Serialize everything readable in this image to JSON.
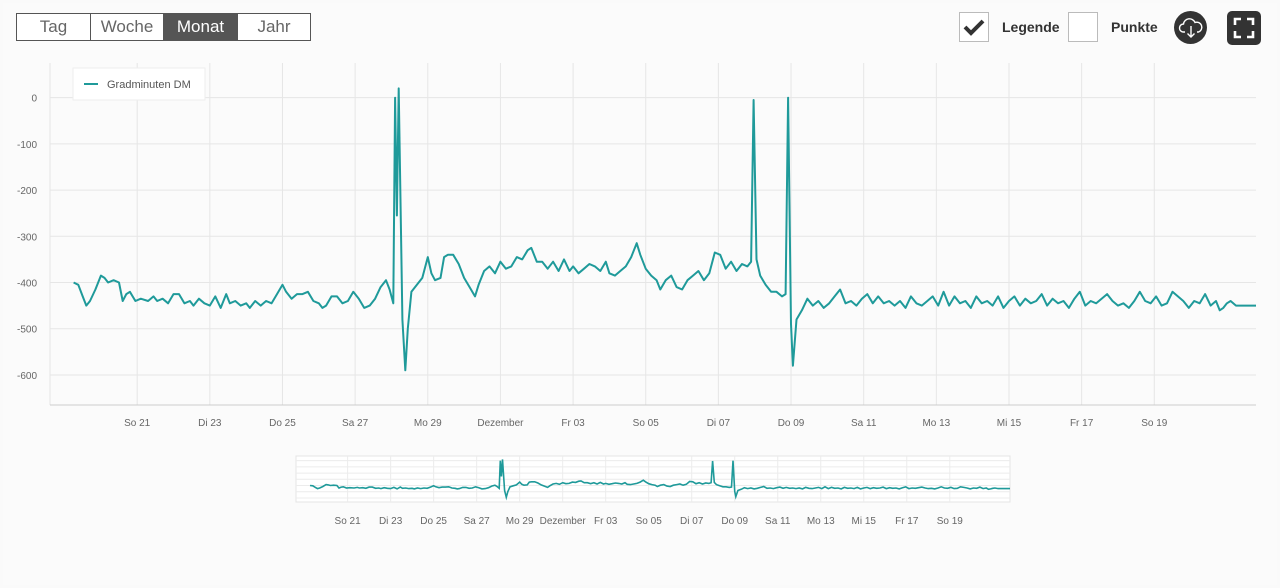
{
  "toolbar": {
    "ranges": [
      "Tag",
      "Woche",
      "Monat",
      "Jahr"
    ],
    "active_range": "Monat",
    "legend_label": "Legende",
    "legend_checked": true,
    "points_label": "Punkte",
    "points_checked": false,
    "download_icon": "cloud-download-icon",
    "fullscreen_icon": "fullscreen-icon"
  },
  "colors": {
    "series": "#1f9a9a",
    "grid": "#e6e6e6",
    "axis_text": "#666666",
    "active_bg": "#555555"
  },
  "chart_data": {
    "type": "line",
    "series": [
      {
        "name": "Gradminuten DM",
        "points": [
          [
            19.25,
            -400
          ],
          [
            19.38,
            -405
          ],
          [
            19.5,
            -430
          ],
          [
            19.6,
            -450
          ],
          [
            19.7,
            -440
          ],
          [
            19.85,
            -415
          ],
          [
            20.0,
            -385
          ],
          [
            20.1,
            -390
          ],
          [
            20.2,
            -400
          ],
          [
            20.35,
            -395
          ],
          [
            20.5,
            -400
          ],
          [
            20.6,
            -440
          ],
          [
            20.7,
            -425
          ],
          [
            20.8,
            -420
          ],
          [
            20.95,
            -440
          ],
          [
            21.1,
            -435
          ],
          [
            21.3,
            -440
          ],
          [
            21.45,
            -430
          ],
          [
            21.55,
            -440
          ],
          [
            21.7,
            -435
          ],
          [
            21.85,
            -445
          ],
          [
            22.0,
            -425
          ],
          [
            22.15,
            -425
          ],
          [
            22.3,
            -445
          ],
          [
            22.45,
            -440
          ],
          [
            22.55,
            -450
          ],
          [
            22.7,
            -435
          ],
          [
            22.85,
            -445
          ],
          [
            23.0,
            -450
          ],
          [
            23.15,
            -430
          ],
          [
            23.3,
            -455
          ],
          [
            23.45,
            -425
          ],
          [
            23.55,
            -445
          ],
          [
            23.7,
            -440
          ],
          [
            23.85,
            -450
          ],
          [
            24.0,
            -445
          ],
          [
            24.1,
            -455
          ],
          [
            24.25,
            -440
          ],
          [
            24.4,
            -450
          ],
          [
            24.55,
            -440
          ],
          [
            24.7,
            -445
          ],
          [
            24.85,
            -425
          ],
          [
            25.0,
            -405
          ],
          [
            25.1,
            -420
          ],
          [
            25.25,
            -435
          ],
          [
            25.4,
            -425
          ],
          [
            25.55,
            -425
          ],
          [
            25.7,
            -420
          ],
          [
            25.85,
            -440
          ],
          [
            26.0,
            -445
          ],
          [
            26.1,
            -455
          ],
          [
            26.2,
            -450
          ],
          [
            26.35,
            -430
          ],
          [
            26.5,
            -430
          ],
          [
            26.65,
            -445
          ],
          [
            26.8,
            -440
          ],
          [
            26.95,
            -420
          ],
          [
            27.1,
            -435
          ],
          [
            27.25,
            -455
          ],
          [
            27.4,
            -450
          ],
          [
            27.55,
            -435
          ],
          [
            27.7,
            -410
          ],
          [
            27.85,
            -395
          ],
          [
            27.95,
            -415
          ],
          [
            28.05,
            -445
          ],
          [
            28.1,
            0
          ],
          [
            28.15,
            -255
          ],
          [
            28.2,
            20
          ],
          [
            28.3,
            -480
          ],
          [
            28.38,
            -590
          ],
          [
            28.45,
            -500
          ],
          [
            28.55,
            -420
          ],
          [
            28.7,
            -405
          ],
          [
            28.85,
            -390
          ],
          [
            29.0,
            -345
          ],
          [
            29.1,
            -380
          ],
          [
            29.2,
            -395
          ],
          [
            29.35,
            -390
          ],
          [
            29.45,
            -345
          ],
          [
            29.55,
            -340
          ],
          [
            29.7,
            -340
          ],
          [
            29.85,
            -360
          ],
          [
            30.0,
            -390
          ],
          [
            30.15,
            -410
          ],
          [
            30.3,
            -430
          ],
          [
            30.4,
            -405
          ],
          [
            30.55,
            -375
          ],
          [
            30.7,
            -365
          ],
          [
            30.85,
            -380
          ],
          [
            31.0,
            -355
          ],
          [
            31.15,
            -370
          ],
          [
            31.3,
            -365
          ],
          [
            31.45,
            -345
          ],
          [
            31.6,
            -350
          ],
          [
            31.75,
            -330
          ],
          [
            31.85,
            -325
          ],
          [
            32.0,
            -355
          ],
          [
            32.15,
            -355
          ],
          [
            32.3,
            -370
          ],
          [
            32.45,
            -355
          ],
          [
            32.6,
            -375
          ],
          [
            32.75,
            -350
          ],
          [
            32.9,
            -375
          ],
          [
            33.0,
            -365
          ],
          [
            33.15,
            -380
          ],
          [
            33.3,
            -370
          ],
          [
            33.45,
            -360
          ],
          [
            33.6,
            -365
          ],
          [
            33.75,
            -375
          ],
          [
            33.9,
            -355
          ],
          [
            34.0,
            -380
          ],
          [
            34.15,
            -385
          ],
          [
            34.3,
            -375
          ],
          [
            34.45,
            -365
          ],
          [
            34.6,
            -345
          ],
          [
            34.75,
            -315
          ],
          [
            34.85,
            -340
          ],
          [
            35.0,
            -370
          ],
          [
            35.15,
            -385
          ],
          [
            35.3,
            -395
          ],
          [
            35.4,
            -415
          ],
          [
            35.55,
            -395
          ],
          [
            35.7,
            -385
          ],
          [
            35.85,
            -410
          ],
          [
            36.0,
            -415
          ],
          [
            36.15,
            -395
          ],
          [
            36.3,
            -385
          ],
          [
            36.45,
            -375
          ],
          [
            36.6,
            -395
          ],
          [
            36.75,
            -380
          ],
          [
            36.9,
            -335
          ],
          [
            37.05,
            -340
          ],
          [
            37.2,
            -370
          ],
          [
            37.35,
            -355
          ],
          [
            37.5,
            -375
          ],
          [
            37.65,
            -360
          ],
          [
            37.8,
            -365
          ],
          [
            37.9,
            -355
          ],
          [
            37.97,
            -5
          ],
          [
            38.05,
            -350
          ],
          [
            38.15,
            -385
          ],
          [
            38.3,
            -405
          ],
          [
            38.45,
            -420
          ],
          [
            38.6,
            -420
          ],
          [
            38.75,
            -430
          ],
          [
            38.85,
            -425
          ],
          [
            38.92,
            0
          ],
          [
            39.0,
            -490
          ],
          [
            39.05,
            -580
          ],
          [
            39.15,
            -480
          ],
          [
            39.3,
            -460
          ],
          [
            39.45,
            -435
          ],
          [
            39.6,
            -450
          ],
          [
            39.75,
            -440
          ],
          [
            39.9,
            -455
          ],
          [
            40.05,
            -445
          ],
          [
            40.2,
            -430
          ],
          [
            40.35,
            -415
          ],
          [
            40.5,
            -445
          ],
          [
            40.65,
            -440
          ],
          [
            40.8,
            -450
          ],
          [
            40.95,
            -435
          ],
          [
            41.1,
            -425
          ],
          [
            41.25,
            -445
          ],
          [
            41.4,
            -430
          ],
          [
            41.55,
            -445
          ],
          [
            41.7,
            -440
          ],
          [
            41.85,
            -450
          ],
          [
            42.0,
            -440
          ],
          [
            42.15,
            -455
          ],
          [
            42.3,
            -430
          ],
          [
            42.45,
            -445
          ],
          [
            42.6,
            -450
          ],
          [
            42.75,
            -440
          ],
          [
            42.9,
            -430
          ],
          [
            43.05,
            -450
          ],
          [
            43.2,
            -420
          ],
          [
            43.35,
            -450
          ],
          [
            43.5,
            -430
          ],
          [
            43.65,
            -445
          ],
          [
            43.8,
            -440
          ],
          [
            43.95,
            -455
          ],
          [
            44.1,
            -430
          ],
          [
            44.25,
            -445
          ],
          [
            44.4,
            -440
          ],
          [
            44.55,
            -450
          ],
          [
            44.7,
            -430
          ],
          [
            44.85,
            -455
          ],
          [
            45.0,
            -440
          ],
          [
            45.15,
            -430
          ],
          [
            45.3,
            -450
          ],
          [
            45.45,
            -435
          ],
          [
            45.6,
            -445
          ],
          [
            45.75,
            -440
          ],
          [
            45.9,
            -425
          ],
          [
            46.05,
            -450
          ],
          [
            46.2,
            -435
          ],
          [
            46.35,
            -445
          ],
          [
            46.5,
            -440
          ],
          [
            46.65,
            -455
          ],
          [
            46.8,
            -435
          ],
          [
            46.95,
            -420
          ],
          [
            47.1,
            -450
          ],
          [
            47.25,
            -440
          ],
          [
            47.4,
            -445
          ],
          [
            47.55,
            -435
          ],
          [
            47.7,
            -425
          ],
          [
            47.85,
            -440
          ],
          [
            48.0,
            -450
          ],
          [
            48.15,
            -445
          ],
          [
            48.3,
            -455
          ],
          [
            48.45,
            -440
          ],
          [
            48.6,
            -420
          ],
          [
            48.75,
            -440
          ],
          [
            48.9,
            -445
          ],
          [
            49.05,
            -430
          ],
          [
            49.2,
            -450
          ],
          [
            49.35,
            -445
          ],
          [
            49.5,
            -420
          ],
          [
            49.65,
            -430
          ],
          [
            49.8,
            -440
          ],
          [
            49.95,
            -455
          ],
          [
            50.1,
            -440
          ],
          [
            50.25,
            -445
          ],
          [
            50.4,
            -425
          ],
          [
            50.55,
            -450
          ],
          [
            50.7,
            -440
          ],
          [
            50.8,
            -460
          ],
          [
            50.9,
            -455
          ],
          [
            51.0,
            -445
          ],
          [
            51.1,
            -440
          ],
          [
            51.25,
            -450
          ],
          [
            51.4,
            -450
          ],
          [
            51.55,
            -450
          ],
          [
            51.7,
            -450
          ],
          [
            51.8,
            -450
          ]
        ]
      }
    ],
    "x_tick_labels": [
      "So 21",
      "Di 23",
      "Do 25",
      "Sa 27",
      "Mo 29",
      "Dezember",
      "Fr 03",
      "So 05",
      "Di 07",
      "Do 09",
      "Sa 11",
      "Mo 13",
      "Mi 15",
      "Fr 17",
      "So 19"
    ],
    "x_ticks": [
      21,
      23,
      25,
      27,
      29,
      31,
      33,
      35,
      37,
      39,
      41,
      43,
      45,
      47,
      49
    ],
    "xlim": [
      18.6,
      51.8
    ],
    "y_ticks": [
      0,
      -100,
      -200,
      -300,
      -400,
      -500,
      -600
    ],
    "ylim": [
      -665,
      75
    ],
    "navigator_tick_labels": [
      "So 21",
      "Di 23",
      "Do 25",
      "Sa 27",
      "Mo 29",
      "Dezember",
      "Fr 03",
      "So 05",
      "Di 07",
      "Do 09",
      "Sa 11",
      "Mo 13",
      "Mi 15",
      "Fr 17",
      "So 19"
    ],
    "legend_position": "top-left",
    "grid": true
  }
}
